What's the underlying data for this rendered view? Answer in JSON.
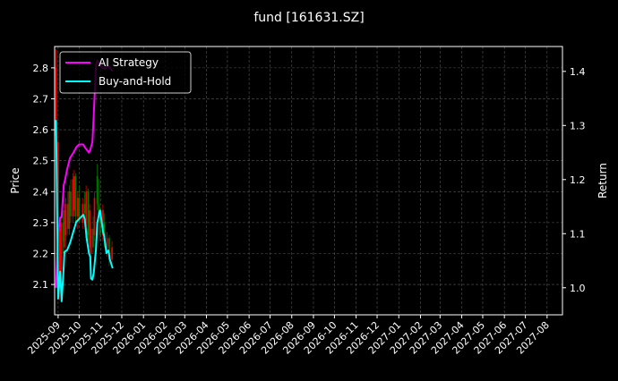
{
  "chart_data": {
    "type": "line",
    "title": "fund [161631.SZ]",
    "ylabel": "Price",
    "ylabel_right": "Return",
    "ylim": [
      2.002,
      2.869
    ],
    "ylim_right": [
      0.95,
      1.446
    ],
    "xlim": [
      "2025-08-27",
      "2027-08-23"
    ],
    "grid": true,
    "legend_placement": "top-left",
    "colors": {
      "background": "#000000",
      "up": "#ff0000",
      "down": "#008000",
      "ai": "#ff00ff",
      "bh": "#00ffff",
      "grid": "#555555"
    },
    "x_ticks": [
      "2025-09",
      "2025-10",
      "2025-11",
      "2025-12",
      "2026-01",
      "2026-02",
      "2026-03",
      "2026-04",
      "2026-05",
      "2026-06",
      "2026-07",
      "2026-08",
      "2026-09",
      "2026-10",
      "2026-11",
      "2026-12",
      "2027-01",
      "2027-02",
      "2027-03",
      "2027-04",
      "2027-05",
      "2027-06",
      "2027-07",
      "2027-08"
    ],
    "y_ticks": [
      "2.1",
      "2.2",
      "2.3",
      "2.4",
      "2.5",
      "2.6",
      "2.7",
      "2.8"
    ],
    "y_ticks_right": [
      "1.0",
      "1.1",
      "1.2",
      "1.3",
      "1.4"
    ],
    "candles": [
      [
        "2025-08-29",
        2.58,
        2.86,
        2.55,
        2.8
      ],
      [
        "2025-09-01",
        2.28,
        2.6,
        2.25,
        2.56
      ],
      [
        "2025-09-03",
        2.1,
        2.3,
        2.05,
        2.28
      ],
      [
        "2025-09-05",
        2.1,
        2.32,
        2.08,
        2.3
      ],
      [
        "2025-09-08",
        2.3,
        2.34,
        2.2,
        2.24
      ],
      [
        "2025-09-10",
        2.22,
        2.36,
        2.2,
        2.34
      ],
      [
        "2025-09-12",
        2.26,
        2.38,
        2.24,
        2.36
      ],
      [
        "2025-09-15",
        2.36,
        2.4,
        2.26,
        2.28
      ],
      [
        "2025-09-17",
        2.28,
        2.42,
        2.26,
        2.4
      ],
      [
        "2025-09-19",
        2.4,
        2.44,
        2.3,
        2.32
      ],
      [
        "2025-09-22",
        2.32,
        2.46,
        2.3,
        2.44
      ],
      [
        "2025-09-24",
        2.34,
        2.47,
        2.32,
        2.45
      ],
      [
        "2025-09-26",
        2.45,
        2.46,
        2.3,
        2.32
      ],
      [
        "2025-09-29",
        2.32,
        2.4,
        2.28,
        2.38
      ],
      [
        "2025-10-01",
        2.38,
        2.42,
        2.3,
        2.31
      ],
      [
        "2025-10-06",
        2.3,
        2.38,
        2.28,
        2.36
      ],
      [
        "2025-10-09",
        2.36,
        2.4,
        2.3,
        2.33
      ],
      [
        "2025-10-11",
        2.25,
        2.42,
        2.24,
        2.4
      ],
      [
        "2025-10-14",
        2.4,
        2.41,
        2.24,
        2.26
      ],
      [
        "2025-10-16",
        2.22,
        2.36,
        2.18,
        2.34
      ],
      [
        "2025-10-18",
        2.2,
        2.3,
        2.16,
        2.28
      ],
      [
        "2025-10-21",
        2.28,
        2.32,
        2.2,
        2.22
      ],
      [
        "2025-10-23",
        2.26,
        2.4,
        2.24,
        2.38
      ],
      [
        "2025-10-27",
        2.45,
        2.49,
        2.34,
        2.36
      ],
      [
        "2025-10-29",
        2.36,
        2.44,
        2.3,
        2.32
      ],
      [
        "2025-10-31",
        2.32,
        2.35,
        2.24,
        2.26
      ],
      [
        "2025-11-04",
        2.26,
        2.36,
        2.24,
        2.34
      ],
      [
        "2025-11-06",
        2.3,
        2.33,
        2.22,
        2.24
      ],
      [
        "2025-11-10",
        2.22,
        2.27,
        2.19,
        2.25
      ],
      [
        "2025-11-13",
        2.25,
        2.26,
        2.16,
        2.18
      ],
      [
        "2025-11-17",
        2.18,
        2.24,
        2.17,
        2.22
      ]
    ],
    "series": [
      {
        "name": "AI Strategy",
        "color": "#ff00ff",
        "x": [
          "2025-08-29",
          "2025-09-01",
          "2025-09-04",
          "2025-09-06",
          "2025-09-09",
          "2025-09-11",
          "2025-09-14",
          "2025-09-18",
          "2025-09-23",
          "2025-09-27",
          "2025-10-01",
          "2025-10-07",
          "2025-10-09",
          "2025-10-12",
          "2025-10-15",
          "2025-10-17",
          "2025-10-20",
          "2025-10-22",
          "2025-10-25",
          "2025-10-27",
          "2025-11-01",
          "2025-11-06",
          "2025-11-12",
          "2025-11-18"
        ],
        "y": [
          1.0,
          1.1,
          1.13,
          1.13,
          1.19,
          1.2,
          1.22,
          1.24,
          1.25,
          1.26,
          1.265,
          1.265,
          1.26,
          1.255,
          1.25,
          1.255,
          1.27,
          1.32,
          1.41,
          1.42,
          1.41,
          1.405,
          1.41,
          1.4
        ]
      },
      {
        "name": "Buy-and-Hold",
        "color": "#00ffff",
        "x": [
          "2025-08-29",
          "2025-09-01",
          "2025-09-04",
          "2025-09-06",
          "2025-09-09",
          "2025-09-10",
          "2025-09-14",
          "2025-09-18",
          "2025-09-23",
          "2025-09-27",
          "2025-10-01",
          "2025-10-07",
          "2025-10-09",
          "2025-10-12",
          "2025-10-15",
          "2025-10-17",
          "2025-10-18",
          "2025-10-20",
          "2025-10-22",
          "2025-10-25",
          "2025-10-27",
          "2025-10-30",
          "2025-10-31",
          "2025-11-04",
          "2025-11-06",
          "2025-11-09",
          "2025-11-12",
          "2025-11-14",
          "2025-11-18"
        ],
        "y": [
          1.31,
          0.98,
          1.03,
          0.975,
          1.04,
          1.066,
          1.07,
          1.083,
          1.105,
          1.122,
          1.127,
          1.135,
          1.127,
          1.09,
          1.064,
          1.057,
          1.017,
          1.015,
          1.028,
          1.07,
          1.12,
          1.14,
          1.143,
          1.105,
          1.094,
          1.064,
          1.069,
          1.052,
          1.036
        ]
      }
    ]
  }
}
